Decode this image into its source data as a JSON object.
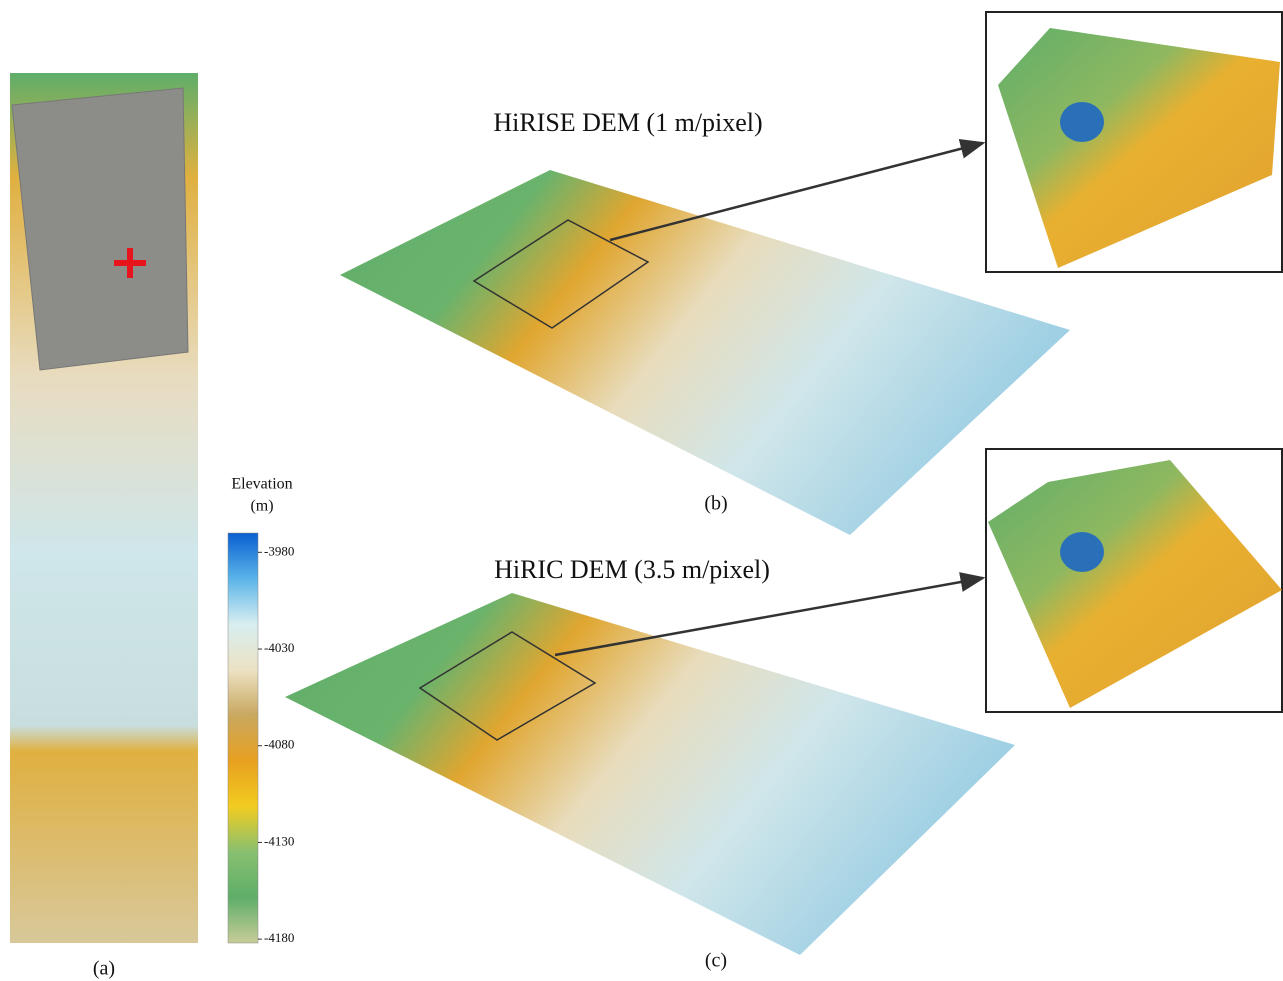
{
  "figure": {
    "panels": [
      {
        "label": "(a)"
      },
      {
        "label": "(b)",
        "title": "HiRISE DEM (1 m/pixel)"
      },
      {
        "label": "(c)",
        "title": "HiRIC DEM (3.5 m/pixel)"
      }
    ],
    "colorbar": {
      "title_lines": [
        "Elevation",
        "(m)"
      ],
      "range": [
        -3970,
        -4182
      ],
      "ticks": [
        -3980,
        -4030,
        -4080,
        -4130,
        -4180
      ],
      "colors": [
        "#0a5fd0",
        "#5ab4e8",
        "#d8eef0",
        "#ece2c4",
        "#c9a860",
        "#e8a020",
        "#f2cc20",
        "#88c070",
        "#5fae6a",
        "#c8cc98"
      ]
    }
  }
}
